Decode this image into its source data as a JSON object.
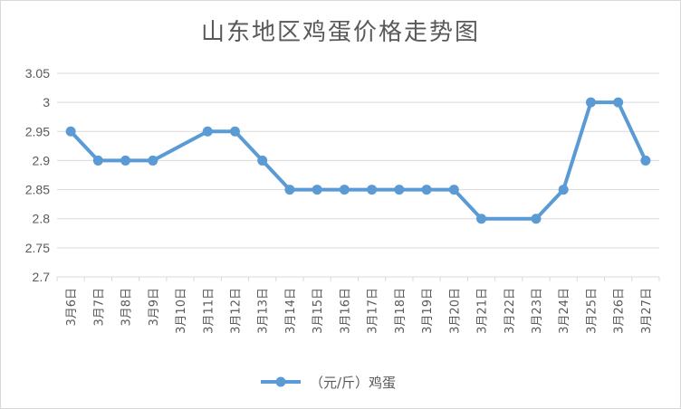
{
  "chart_data": {
    "type": "line",
    "title": "山东地区鸡蛋价格走势图",
    "categories": [
      "3月6日",
      "3月7日",
      "3月8日",
      "3月9日",
      "3月10日",
      "3月11日",
      "3月12日",
      "3月13日",
      "3月14日",
      "3月15日",
      "3月16日",
      "3月17日",
      "3月18日",
      "3月19日",
      "3月20日",
      "3月21日",
      "3月22日",
      "3月23日",
      "3月24日",
      "3月25日",
      "3月26日",
      "3月27日"
    ],
    "series": [
      {
        "name": "（元/斤）鸡蛋",
        "color": "#5b9bd5",
        "values": [
          2.95,
          2.9,
          2.9,
          2.9,
          null,
          2.95,
          2.95,
          2.9,
          2.85,
          2.85,
          2.85,
          2.85,
          2.85,
          2.85,
          2.85,
          2.8,
          null,
          2.8,
          2.85,
          3.0,
          3.0,
          2.9
        ]
      }
    ],
    "ylim": [
      2.7,
      3.05
    ],
    "yticks": [
      "2.7",
      "2.75",
      "2.8",
      "2.85",
      "2.9",
      "2.95",
      "3",
      "3.05"
    ],
    "grid": true,
    "legend": "bottom"
  }
}
